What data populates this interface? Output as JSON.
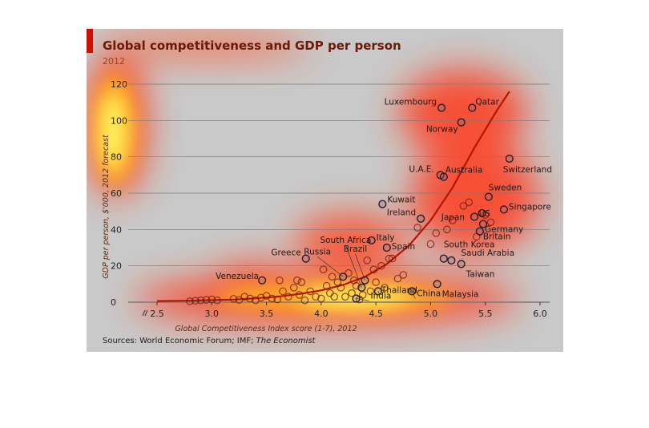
{
  "chart_data": {
    "type": "scatter",
    "title": "Global competitiveness and GDP per person",
    "subtitle": "2012",
    "xlabel": "Global Competitiveness Index score (1-7), 2012",
    "ylabel": "GDP per person, $'000, 2012 forecast",
    "source_prefix": "Sources: World Economic Forum; IMF; ",
    "source_italic": "The Economist",
    "xlim": [
      2.5,
      6.0
    ],
    "ylim": [
      0,
      120
    ],
    "x_ticks": [
      "2.5",
      "3.0",
      "3.5",
      "4.0",
      "4.5",
      "5.0",
      "5.5",
      "6.0"
    ],
    "y_ticks": [
      "0",
      "20",
      "40",
      "60",
      "80",
      "100",
      "120"
    ],
    "grid": true,
    "labeled_points": [
      {
        "label": "Luxembourg",
        "x": 5.1,
        "y": 107
      },
      {
        "label": "Qatar",
        "x": 5.38,
        "y": 107
      },
      {
        "label": "Norway",
        "x": 5.28,
        "y": 99
      },
      {
        "label": "Switzerland",
        "x": 5.72,
        "y": 79
      },
      {
        "label": "U.A.E.",
        "x": 5.09,
        "y": 70
      },
      {
        "label": "Australia",
        "x": 5.12,
        "y": 69
      },
      {
        "label": "Sweden",
        "x": 5.53,
        "y": 58
      },
      {
        "label": "Kuwait",
        "x": 4.56,
        "y": 54
      },
      {
        "label": "Japan",
        "x": 5.4,
        "y": 47
      },
      {
        "label": "US",
        "x": 5.47,
        "y": 49
      },
      {
        "label": "Singapore",
        "x": 5.67,
        "y": 51
      },
      {
        "label": "Ireland",
        "x": 4.91,
        "y": 46
      },
      {
        "label": "Germany",
        "x": 5.48,
        "y": 43
      },
      {
        "label": "Britain",
        "x": 5.45,
        "y": 39
      },
      {
        "label": "Italy",
        "x": 4.46,
        "y": 34
      },
      {
        "label": "Spain",
        "x": 4.6,
        "y": 30
      },
      {
        "label": "Brazil",
        "x": 4.4,
        "y": 12
      },
      {
        "label": "South Africa",
        "x": 4.37,
        "y": 8
      },
      {
        "label": "Russia",
        "x": 4.2,
        "y": 14
      },
      {
        "label": "Greece",
        "x": 3.86,
        "y": 24
      },
      {
        "label": "South Korea",
        "x": 5.12,
        "y": 24
      },
      {
        "label": "Saudi Arabia",
        "x": 5.19,
        "y": 23
      },
      {
        "label": "Taiwan",
        "x": 5.28,
        "y": 21
      },
      {
        "label": "Venezuela",
        "x": 3.46,
        "y": 12
      },
      {
        "label": "Thailand",
        "x": 4.52,
        "y": 6
      },
      {
        "label": "Malaysia",
        "x": 5.06,
        "y": 10
      },
      {
        "label": "India",
        "x": 4.32,
        "y": 2
      },
      {
        "label": "China",
        "x": 4.83,
        "y": 6
      }
    ],
    "unlabeled_points": [
      [
        2.8,
        0.5
      ],
      [
        2.85,
        0.8
      ],
      [
        2.9,
        1
      ],
      [
        2.95,
        1.3
      ],
      [
        3.0,
        1.5
      ],
      [
        3.05,
        1
      ],
      [
        3.2,
        1.8
      ],
      [
        3.25,
        1.2
      ],
      [
        3.3,
        3
      ],
      [
        3.35,
        2
      ],
      [
        3.4,
        1
      ],
      [
        3.45,
        2.5
      ],
      [
        3.5,
        3.5
      ],
      [
        3.55,
        2
      ],
      [
        3.6,
        1.5
      ],
      [
        3.62,
        12
      ],
      [
        3.65,
        6
      ],
      [
        3.7,
        3
      ],
      [
        3.75,
        8
      ],
      [
        3.78,
        12
      ],
      [
        3.8,
        4
      ],
      [
        3.82,
        11
      ],
      [
        3.85,
        1
      ],
      [
        3.9,
        6
      ],
      [
        3.95,
        3
      ],
      [
        4.0,
        2
      ],
      [
        4.02,
        18
      ],
      [
        4.05,
        9
      ],
      [
        4.08,
        5
      ],
      [
        4.1,
        14
      ],
      [
        4.12,
        3
      ],
      [
        4.15,
        11
      ],
      [
        4.18,
        8
      ],
      [
        4.22,
        3
      ],
      [
        4.25,
        16
      ],
      [
        4.28,
        5
      ],
      [
        4.3,
        12
      ],
      [
        4.32,
        9
      ],
      [
        4.35,
        1.5
      ],
      [
        4.38,
        4
      ],
      [
        4.42,
        23
      ],
      [
        4.45,
        6
      ],
      [
        4.48,
        18
      ],
      [
        4.5,
        11
      ],
      [
        4.55,
        20
      ],
      [
        4.58,
        8
      ],
      [
        4.62,
        24
      ],
      [
        4.65,
        24
      ],
      [
        4.7,
        13
      ],
      [
        4.75,
        15
      ],
      [
        4.88,
        41
      ],
      [
        5.0,
        32
      ],
      [
        5.05,
        38
      ],
      [
        5.15,
        40
      ],
      [
        5.2,
        45
      ],
      [
        5.3,
        53
      ],
      [
        5.35,
        55
      ],
      [
        5.42,
        36
      ],
      [
        5.5,
        48
      ],
      [
        5.55,
        44
      ]
    ],
    "trend_points": [
      [
        2.5,
        0.6
      ],
      [
        2.8,
        0.8
      ],
      [
        3.0,
        1.1
      ],
      [
        3.2,
        1.4
      ],
      [
        3.4,
        2.1
      ],
      [
        3.6,
        3
      ],
      [
        3.8,
        4.5
      ],
      [
        4.0,
        6.5
      ],
      [
        4.2,
        9.5
      ],
      [
        4.4,
        14
      ],
      [
        4.6,
        21
      ],
      [
        4.8,
        31
      ],
      [
        5.0,
        45
      ],
      [
        5.2,
        63
      ],
      [
        5.4,
        85
      ],
      [
        5.6,
        105
      ],
      [
        5.72,
        116
      ]
    ],
    "colors": {
      "trend": "#b81400",
      "point_stroke": "#6b1a10",
      "grid": "#7a7a7a",
      "title": "#6b1a0a",
      "accent_bar": "#cc1100"
    }
  }
}
